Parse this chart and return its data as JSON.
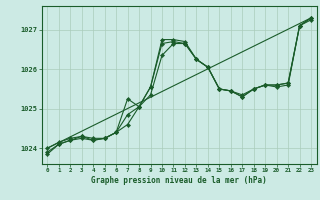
{
  "title": "Graphe pression niveau de la mer (hPa)",
  "background_color": "#cceae4",
  "grid_color": "#aaccbb",
  "line_color": "#1a5c2a",
  "x_ticks": [
    0,
    1,
    2,
    3,
    4,
    5,
    6,
    7,
    8,
    9,
    10,
    11,
    12,
    13,
    14,
    15,
    16,
    17,
    18,
    19,
    20,
    21,
    22,
    23
  ],
  "ylim": [
    1023.6,
    1027.6
  ],
  "yticks": [
    1024,
    1025,
    1026,
    1027
  ],
  "trend": [
    1024.0,
    1027.3
  ],
  "series1": [
    1023.9,
    1024.1,
    1024.2,
    1024.3,
    1024.25,
    1024.25,
    1024.4,
    1024.85,
    1025.05,
    1025.35,
    1026.35,
    1026.65,
    1026.65,
    1026.25,
    1026.05,
    1025.5,
    1025.45,
    1025.35,
    1025.5,
    1025.6,
    1025.6,
    1025.65,
    1027.1,
    1027.3
  ],
  "series2": [
    1024.0,
    1024.15,
    1024.25,
    1024.3,
    1024.2,
    1024.25,
    1024.4,
    1025.25,
    1025.05,
    1025.55,
    1026.65,
    1026.7,
    1026.65,
    1026.25,
    1026.05,
    1025.5,
    1025.45,
    1025.3,
    1025.5,
    1025.6,
    1025.6,
    1025.65,
    1027.1,
    1027.3
  ],
  "series3": [
    1023.85,
    1024.1,
    1024.2,
    1024.25,
    1024.2,
    1024.25,
    1024.4,
    1024.6,
    1025.05,
    1025.55,
    1026.75,
    1026.75,
    1026.7,
    1026.25,
    1026.05,
    1025.5,
    1025.45,
    1025.3,
    1025.5,
    1025.6,
    1025.55,
    1025.6,
    1027.1,
    1027.25
  ]
}
